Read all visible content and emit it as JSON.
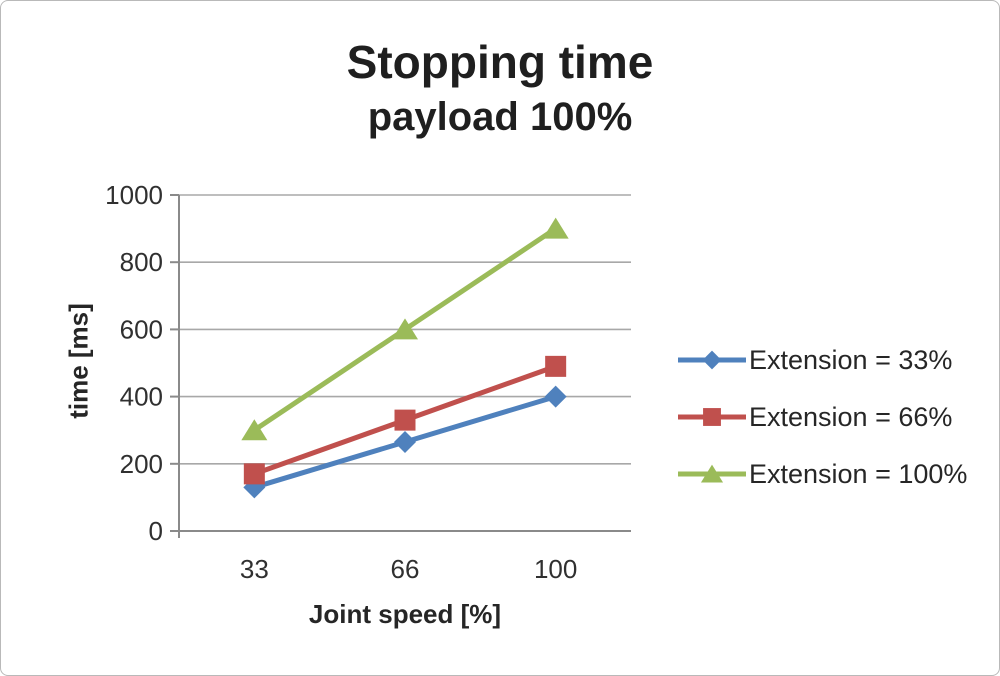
{
  "window": {
    "background": "#ffffff",
    "border_color": "#b9b9b9"
  },
  "chart_data": {
    "type": "line",
    "title": "Stopping time",
    "subtitle": "payload 100%",
    "xlabel": "Joint speed [%]",
    "ylabel": "time [ms]",
    "categories": [
      "33",
      "66",
      "100"
    ],
    "ylim": [
      0,
      1000
    ],
    "ytick_interval": 200,
    "ytick_labels": [
      "0",
      "200",
      "400",
      "600",
      "800",
      "1000"
    ],
    "grid": true,
    "legend_position": "right",
    "series": [
      {
        "name": "Extension = 33%",
        "marker": "diamond",
        "color": "#4f81bd",
        "values": [
          130,
          265,
          400
        ]
      },
      {
        "name": "Extension = 66%",
        "marker": "square",
        "color": "#c0504d",
        "values": [
          170,
          330,
          490
        ]
      },
      {
        "name": "Extension = 100%",
        "marker": "triangle",
        "color": "#9bbb59",
        "values": [
          300,
          600,
          900
        ]
      }
    ],
    "axis_color": "#8a8a8a",
    "gridline_color": "#a8a8a8",
    "text_color": "#303030"
  }
}
